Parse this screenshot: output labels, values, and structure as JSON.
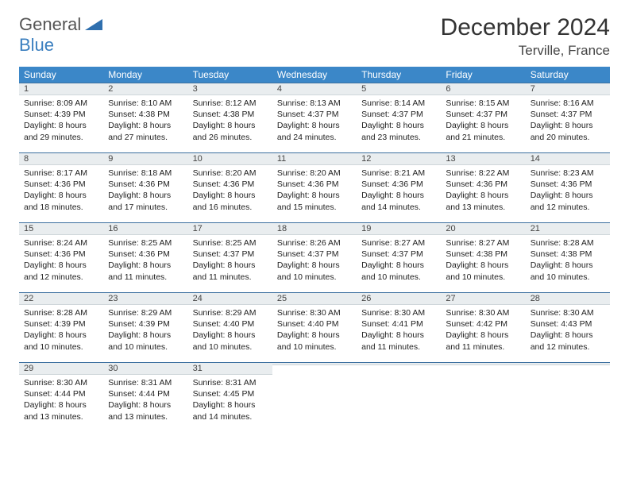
{
  "logo": {
    "part1": "General",
    "part2": "Blue"
  },
  "title": "December 2024",
  "location": "Terville, France",
  "header_color": "#3b87c8",
  "daybar_color": "#e9edef",
  "rule_color": "#3b6f9f",
  "weekdays": [
    "Sunday",
    "Monday",
    "Tuesday",
    "Wednesday",
    "Thursday",
    "Friday",
    "Saturday"
  ],
  "cell_fontsize": 10.5,
  "weeks": [
    [
      {
        "n": "1",
        "sr": "Sunrise: 8:09 AM",
        "ss": "Sunset: 4:39 PM",
        "dl": "Daylight: 8 hours and 29 minutes."
      },
      {
        "n": "2",
        "sr": "Sunrise: 8:10 AM",
        "ss": "Sunset: 4:38 PM",
        "dl": "Daylight: 8 hours and 27 minutes."
      },
      {
        "n": "3",
        "sr": "Sunrise: 8:12 AM",
        "ss": "Sunset: 4:38 PM",
        "dl": "Daylight: 8 hours and 26 minutes."
      },
      {
        "n": "4",
        "sr": "Sunrise: 8:13 AM",
        "ss": "Sunset: 4:37 PM",
        "dl": "Daylight: 8 hours and 24 minutes."
      },
      {
        "n": "5",
        "sr": "Sunrise: 8:14 AM",
        "ss": "Sunset: 4:37 PM",
        "dl": "Daylight: 8 hours and 23 minutes."
      },
      {
        "n": "6",
        "sr": "Sunrise: 8:15 AM",
        "ss": "Sunset: 4:37 PM",
        "dl": "Daylight: 8 hours and 21 minutes."
      },
      {
        "n": "7",
        "sr": "Sunrise: 8:16 AM",
        "ss": "Sunset: 4:37 PM",
        "dl": "Daylight: 8 hours and 20 minutes."
      }
    ],
    [
      {
        "n": "8",
        "sr": "Sunrise: 8:17 AM",
        "ss": "Sunset: 4:36 PM",
        "dl": "Daylight: 8 hours and 18 minutes."
      },
      {
        "n": "9",
        "sr": "Sunrise: 8:18 AM",
        "ss": "Sunset: 4:36 PM",
        "dl": "Daylight: 8 hours and 17 minutes."
      },
      {
        "n": "10",
        "sr": "Sunrise: 8:20 AM",
        "ss": "Sunset: 4:36 PM",
        "dl": "Daylight: 8 hours and 16 minutes."
      },
      {
        "n": "11",
        "sr": "Sunrise: 8:20 AM",
        "ss": "Sunset: 4:36 PM",
        "dl": "Daylight: 8 hours and 15 minutes."
      },
      {
        "n": "12",
        "sr": "Sunrise: 8:21 AM",
        "ss": "Sunset: 4:36 PM",
        "dl": "Daylight: 8 hours and 14 minutes."
      },
      {
        "n": "13",
        "sr": "Sunrise: 8:22 AM",
        "ss": "Sunset: 4:36 PM",
        "dl": "Daylight: 8 hours and 13 minutes."
      },
      {
        "n": "14",
        "sr": "Sunrise: 8:23 AM",
        "ss": "Sunset: 4:36 PM",
        "dl": "Daylight: 8 hours and 12 minutes."
      }
    ],
    [
      {
        "n": "15",
        "sr": "Sunrise: 8:24 AM",
        "ss": "Sunset: 4:36 PM",
        "dl": "Daylight: 8 hours and 12 minutes."
      },
      {
        "n": "16",
        "sr": "Sunrise: 8:25 AM",
        "ss": "Sunset: 4:36 PM",
        "dl": "Daylight: 8 hours and 11 minutes."
      },
      {
        "n": "17",
        "sr": "Sunrise: 8:25 AM",
        "ss": "Sunset: 4:37 PM",
        "dl": "Daylight: 8 hours and 11 minutes."
      },
      {
        "n": "18",
        "sr": "Sunrise: 8:26 AM",
        "ss": "Sunset: 4:37 PM",
        "dl": "Daylight: 8 hours and 10 minutes."
      },
      {
        "n": "19",
        "sr": "Sunrise: 8:27 AM",
        "ss": "Sunset: 4:37 PM",
        "dl": "Daylight: 8 hours and 10 minutes."
      },
      {
        "n": "20",
        "sr": "Sunrise: 8:27 AM",
        "ss": "Sunset: 4:38 PM",
        "dl": "Daylight: 8 hours and 10 minutes."
      },
      {
        "n": "21",
        "sr": "Sunrise: 8:28 AM",
        "ss": "Sunset: 4:38 PM",
        "dl": "Daylight: 8 hours and 10 minutes."
      }
    ],
    [
      {
        "n": "22",
        "sr": "Sunrise: 8:28 AM",
        "ss": "Sunset: 4:39 PM",
        "dl": "Daylight: 8 hours and 10 minutes."
      },
      {
        "n": "23",
        "sr": "Sunrise: 8:29 AM",
        "ss": "Sunset: 4:39 PM",
        "dl": "Daylight: 8 hours and 10 minutes."
      },
      {
        "n": "24",
        "sr": "Sunrise: 8:29 AM",
        "ss": "Sunset: 4:40 PM",
        "dl": "Daylight: 8 hours and 10 minutes."
      },
      {
        "n": "25",
        "sr": "Sunrise: 8:30 AM",
        "ss": "Sunset: 4:40 PM",
        "dl": "Daylight: 8 hours and 10 minutes."
      },
      {
        "n": "26",
        "sr": "Sunrise: 8:30 AM",
        "ss": "Sunset: 4:41 PM",
        "dl": "Daylight: 8 hours and 11 minutes."
      },
      {
        "n": "27",
        "sr": "Sunrise: 8:30 AM",
        "ss": "Sunset: 4:42 PM",
        "dl": "Daylight: 8 hours and 11 minutes."
      },
      {
        "n": "28",
        "sr": "Sunrise: 8:30 AM",
        "ss": "Sunset: 4:43 PM",
        "dl": "Daylight: 8 hours and 12 minutes."
      }
    ],
    [
      {
        "n": "29",
        "sr": "Sunrise: 8:30 AM",
        "ss": "Sunset: 4:44 PM",
        "dl": "Daylight: 8 hours and 13 minutes."
      },
      {
        "n": "30",
        "sr": "Sunrise: 8:31 AM",
        "ss": "Sunset: 4:44 PM",
        "dl": "Daylight: 8 hours and 13 minutes."
      },
      {
        "n": "31",
        "sr": "Sunrise: 8:31 AM",
        "ss": "Sunset: 4:45 PM",
        "dl": "Daylight: 8 hours and 14 minutes."
      },
      {
        "n": "",
        "sr": "",
        "ss": "",
        "dl": ""
      },
      {
        "n": "",
        "sr": "",
        "ss": "",
        "dl": ""
      },
      {
        "n": "",
        "sr": "",
        "ss": "",
        "dl": ""
      },
      {
        "n": "",
        "sr": "",
        "ss": "",
        "dl": ""
      }
    ]
  ]
}
